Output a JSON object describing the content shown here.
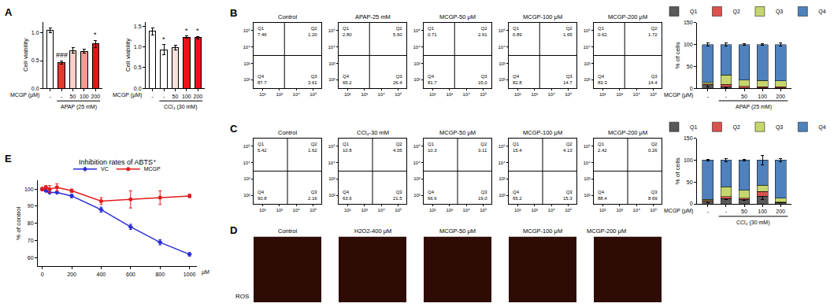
{
  "chart_data": [
    {
      "panel": "A",
      "type": "bar",
      "y_label": "Cell viability",
      "categories": [
        "-",
        "-",
        "50",
        "100",
        "200"
      ],
      "row_label": "MCGP (μM)",
      "group_label": "APAP (25 mM)",
      "group_range": [
        1,
        4
      ],
      "values": [
        1.05,
        0.47,
        0.68,
        0.67,
        0.8
      ],
      "errors": [
        0.04,
        0.03,
        0.05,
        0.04,
        0.07
      ],
      "colors": [
        "#ffffff",
        "#e8382f",
        "#f9cfc9",
        "#f29a93",
        "#e3141b"
      ],
      "marks": [
        {
          "index": 1,
          "text": "###"
        },
        {
          "index": 4,
          "text": "*"
        }
      ],
      "ylim": [
        0,
        1.2
      ],
      "yticks": [
        {
          "value": 0,
          "label": "0.0"
        },
        {
          "value": 0.5,
          "label": "0.5"
        },
        {
          "value": 1,
          "label": "1.0"
        }
      ],
      "grid": false
    },
    {
      "type": "bar",
      "y_label": "Cell viability",
      "categories": [
        "-",
        "-",
        "50",
        "100",
        "200"
      ],
      "row_label": "MCGP (μM)",
      "group_label": "CCl₄ (30 mM)",
      "group_range": [
        1,
        4
      ],
      "values": [
        1.37,
        0.93,
        0.98,
        1.23,
        1.22
      ],
      "errors": [
        0.08,
        0.12,
        0.06,
        0.03,
        0.03
      ],
      "colors": [
        "#ffffff",
        "#ffffff",
        "#fbe0dc",
        "#e8141a",
        "#e8141a"
      ],
      "marks": [
        {
          "index": 1,
          "text": "*"
        },
        {
          "index": 3,
          "text": "*"
        },
        {
          "index": 4,
          "text": "*"
        }
      ],
      "ylim": [
        0,
        1.6
      ],
      "yticks": [
        {
          "value": 0,
          "label": "0.0"
        },
        {
          "value": 0.5,
          "label": "0.5"
        },
        {
          "value": 1,
          "label": "1.0"
        },
        {
          "value": 1.5,
          "label": "1.5"
        }
      ],
      "grid": false
    },
    {
      "panel": "B",
      "type": "quadrant",
      "log": true,
      "xlim": [
        30,
        300000
      ],
      "ylim": [
        30,
        300000
      ],
      "xticks": [
        {
          "value": 100,
          "label": "10²"
        },
        {
          "value": 1000,
          "label": "10³"
        },
        {
          "value": 10000,
          "label": "10⁴"
        },
        {
          "value": 100000,
          "label": "10⁵"
        }
      ],
      "yticks": [
        {
          "value": 100,
          "label": "10²"
        },
        {
          "value": 1000,
          "label": "10³"
        },
        {
          "value": 10000,
          "label": "10⁴"
        },
        {
          "value": 100000,
          "label": "10⁵"
        }
      ],
      "gate": {
        "x": 2000,
        "y": 3000
      },
      "quadrant_names": [
        "Q1",
        "Q2",
        "Q3",
        "Q4"
      ],
      "panels": [
        {
          "title": "Control",
          "values": [
            7.46,
            1.2,
            3.61,
            87.7
          ],
          "value_labels": [
            "7.46",
            "1.20",
            "3.61",
            "87.7"
          ]
        },
        {
          "title": "APAP-25 mM",
          "values": [
            2.8,
            5.6,
            26.4,
            65.2
          ],
          "value_labels": [
            "2.80",
            "5.60",
            "26.4",
            "65.2"
          ]
        },
        {
          "title": "MCGP-50 μM",
          "values": [
            0.71,
            2.61,
            15.0,
            81.7
          ],
          "value_labels": [
            "0.71",
            "2.61",
            "15.0",
            "81.7"
          ]
        },
        {
          "title": "MCGP-100 μM",
          "values": [
            0.89,
            1.65,
            14.7,
            82.8
          ],
          "value_labels": [
            "0.89",
            "1.65",
            "14.7",
            "82.8"
          ]
        },
        {
          "title": "MCGP-200 μM",
          "values": [
            0.62,
            1.72,
            14.4,
            83.3
          ],
          "value_labels": [
            "0.62",
            "1.72",
            "14.4",
            "83.3"
          ]
        }
      ]
    },
    {
      "type": "bar",
      "stacked": true,
      "legend": "top",
      "y_label": "% of cells",
      "categories": [
        "-",
        "-",
        "50",
        "100",
        "200"
      ],
      "row_label": "MCGP (μM)",
      "group_label": "APAP (25 mM)",
      "group_range": [
        1,
        4
      ],
      "ylim": [
        0,
        150
      ],
      "yticks": [
        0,
        50,
        100,
        150
      ],
      "grid": false,
      "series": [
        {
          "name": "Q1",
          "color": "#595959",
          "values": [
            8,
            3,
            1,
            1,
            1
          ],
          "errors": [
            5,
            1,
            0.5,
            0.5,
            0.5
          ]
        },
        {
          "name": "Q2",
          "color": "#d9534f",
          "values": [
            2,
            6,
            3,
            2,
            2
          ]
        },
        {
          "name": "Q3",
          "color": "#c6d66e",
          "values": [
            3,
            21,
            15,
            15,
            14
          ]
        },
        {
          "name": "Q4",
          "color": "#4f81bd",
          "values": [
            87,
            70,
            81,
            82,
            83
          ],
          "errors": [
            3,
            4,
            2,
            2,
            3
          ]
        }
      ]
    },
    {
      "panel": "C",
      "type": "quadrant",
      "log": true,
      "xlim": [
        30,
        300000
      ],
      "ylim": [
        30,
        300000
      ],
      "xticks": [
        {
          "value": 100,
          "label": "10²"
        },
        {
          "value": 1000,
          "label": "10³"
        },
        {
          "value": 10000,
          "label": "10⁴"
        },
        {
          "value": 100000,
          "label": "10⁵"
        }
      ],
      "yticks": [
        {
          "value": 100,
          "label": "10²"
        },
        {
          "value": 1000,
          "label": "10³"
        },
        {
          "value": 10000,
          "label": "10⁴"
        },
        {
          "value": 100000,
          "label": "10⁵"
        }
      ],
      "gate": {
        "x": 3000,
        "y": 3000
      },
      "quadrant_names": [
        "Q1",
        "Q2",
        "Q3",
        "Q4"
      ],
      "panels": [
        {
          "title": "Control",
          "values": [
            5.42,
            1.62,
            2.16,
            90.8
          ],
          "value_labels": [
            "5.42",
            "1.62",
            "2.16",
            "90.8"
          ]
        },
        {
          "title": "CCl₄-30 mM",
          "values": [
            10.8,
            4.05,
            21.5,
            63.6
          ],
          "value_labels": [
            "10.8",
            "4.05",
            "21.5",
            "63.6"
          ]
        },
        {
          "title": "MCGP-50 μM",
          "values": [
            10.3,
            3.11,
            19.0,
            66.6
          ],
          "value_labels": [
            "10.3",
            "3.11",
            "19.0",
            "66.6"
          ]
        },
        {
          "title": "MCGP-100 μM",
          "values": [
            15.4,
            4.13,
            15.3,
            65.2
          ],
          "value_labels": [
            "15.4",
            "4.13",
            "15.3",
            "65.2"
          ]
        },
        {
          "title": "MCGP-200 μM",
          "values": [
            2.42,
            0.26,
            8.69,
            88.4
          ],
          "value_labels": [
            "2.42",
            "0.26",
            "8.69",
            "88.4"
          ]
        }
      ]
    },
    {
      "type": "bar",
      "stacked": true,
      "legend": "top",
      "y_label": "% of cells",
      "categories": [
        "-",
        "-",
        "50",
        "100",
        "200"
      ],
      "row_label": "MCGP (μM)",
      "group_label": "CCl₄ (30 mM)",
      "group_range": [
        1,
        4
      ],
      "ylim": [
        0,
        150
      ],
      "yticks": [
        0,
        50,
        100,
        150
      ],
      "grid": false,
      "series": [
        {
          "name": "Q1",
          "color": "#595959",
          "values": [
            6,
            12,
            10,
            18,
            3
          ],
          "errors": [
            3,
            2,
            1,
            8,
            1
          ]
        },
        {
          "name": "Q2",
          "color": "#d9534f",
          "values": [
            2,
            5,
            3,
            10,
            1
          ]
        },
        {
          "name": "Q3",
          "color": "#c6d66e",
          "values": [
            2,
            22,
            18,
            15,
            9
          ]
        },
        {
          "name": "Q4",
          "color": "#4f81bd",
          "values": [
            90,
            61,
            69,
            57,
            87
          ],
          "errors": [
            1,
            3,
            2,
            10,
            3
          ]
        }
      ]
    },
    {
      "panel": "D",
      "type": "image",
      "row_label": "ROS",
      "titles": [
        "Control",
        "H2O2-400 μM",
        "MCGP-50 μM",
        "MCGP-100 μM",
        "MCGP-200 μM"
      ]
    },
    {
      "panel": "E",
      "type": "line",
      "title": "Inhibition rates of ABTS⁺",
      "x_label": "μM",
      "y_label": "% of control",
      "x": [
        0,
        25,
        50,
        100,
        200,
        400,
        600,
        800,
        1000
      ],
      "xlim": [
        -30,
        1050
      ],
      "xticks": [
        0,
        200,
        400,
        600,
        800,
        1000
      ],
      "ylim": [
        55,
        105
      ],
      "yticks": [
        60,
        70,
        80,
        90,
        100
      ],
      "grid": false,
      "legend": "top",
      "series": [
        {
          "name": "VC",
          "color": "#2b2bd9",
          "marker": "diamond",
          "values": [
            100,
            99,
            98,
            98,
            96,
            88,
            78,
            69,
            62
          ],
          "errors": [
            0.5,
            0.5,
            0.5,
            0.5,
            1,
            1.5,
            1.5,
            1.5,
            1
          ]
        },
        {
          "name": "MCGP",
          "color": "#e31a1c",
          "marker": "circle",
          "values": [
            100,
            101,
            100,
            101,
            99,
            93,
            94,
            95,
            96
          ],
          "errors": [
            1,
            1,
            2,
            2,
            1,
            2,
            5,
            4,
            1
          ]
        }
      ]
    }
  ]
}
